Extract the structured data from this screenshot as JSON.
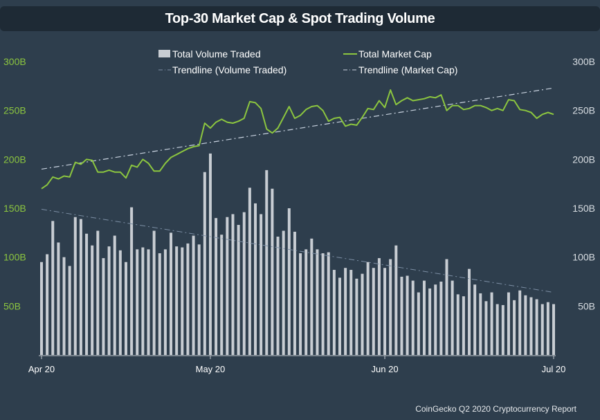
{
  "title": "Top-30 Market Cap & Spot Trading Volume",
  "source": "CoinGecko Q2 2020 Cryptocurrency Report",
  "colors": {
    "background": "#2e3e4d",
    "title_bar": "#1e2a35",
    "volume_bars": "#c8cdd3",
    "market_cap": "#8cc63f",
    "trend_market_cap": "#c9d3e0",
    "trend_volume": "#7d8fa5",
    "left_axis": "#8cc63f",
    "right_axis": "#d8dde2"
  },
  "chart_data": {
    "type": "bar+line",
    "title": "Top-30 Market Cap & Spot Trading Volume",
    "x_start": "2020-04-01",
    "x_end": "2020-07-01",
    "x_ticks": [
      "Apr 20",
      "May 20",
      "Jun 20",
      "Jul 20"
    ],
    "y_left_ticks": [
      "50B",
      "100B",
      "150B",
      "200B",
      "250B",
      "300B"
    ],
    "y_right_ticks": [
      "50B",
      "100B",
      "150B",
      "200B",
      "250B",
      "300B"
    ],
    "ylim": [
      0,
      300
    ],
    "y_unit": "B",
    "grid": false,
    "legend_placement": "top-center",
    "series": [
      {
        "name": "Total Volume Traded",
        "type": "bar",
        "axis": "left",
        "values": [
          95,
          103,
          137,
          115,
          100,
          91,
          141,
          139,
          124,
          112,
          127,
          99,
          111,
          122,
          107,
          95,
          151,
          108,
          110,
          108,
          127,
          104,
          108,
          125,
          111,
          110,
          114,
          122,
          113,
          187,
          206,
          140,
          123,
          141,
          144,
          133,
          146,
          171,
          155,
          144,
          189,
          170,
          121,
          127,
          150,
          126,
          104,
          108,
          119,
          108,
          104,
          105,
          87,
          79,
          89,
          87,
          78,
          83,
          95,
          89,
          99,
          89,
          98,
          112,
          80,
          81,
          76,
          64,
          76,
          68,
          72,
          75,
          98,
          76,
          62,
          60,
          88,
          72,
          63,
          55,
          64,
          52,
          51,
          64,
          56,
          66,
          61,
          59,
          57,
          52,
          54,
          52
        ]
      },
      {
        "name": "Total Market Cap",
        "type": "line",
        "axis": "left",
        "values": [
          170,
          174,
          182,
          180,
          183,
          182,
          197,
          195,
          200,
          199,
          187,
          187,
          189,
          187,
          187,
          181,
          194,
          192,
          200,
          196,
          188,
          188,
          196,
          202,
          205,
          208,
          211,
          213,
          214,
          237,
          232,
          238,
          241,
          238,
          237,
          239,
          242,
          259,
          258,
          252,
          231,
          227,
          232,
          243,
          254,
          242,
          245,
          251,
          254,
          255,
          250,
          239,
          242,
          243,
          234,
          236,
          235,
          243,
          252,
          251,
          260,
          253,
          271,
          256,
          260,
          263,
          260,
          261,
          262,
          264,
          263,
          266,
          250,
          255,
          255,
          251,
          252,
          255,
          255,
          253,
          250,
          252,
          250,
          261,
          260,
          251,
          250,
          248,
          242,
          246,
          248,
          246
        ]
      },
      {
        "name": "Trendline (Volume Traded)",
        "type": "trendline",
        "axis": "left",
        "values": [
          149,
          64
        ]
      },
      {
        "name": "Trendline (Market Cap)",
        "type": "trendline",
        "axis": "left",
        "values": [
          190,
          273
        ]
      }
    ]
  }
}
